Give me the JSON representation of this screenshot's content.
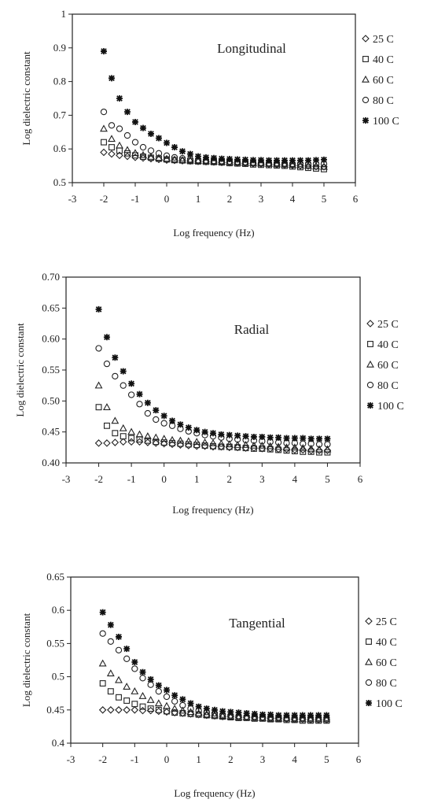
{
  "chart_data": [
    {
      "type": "scatter",
      "title": "Longitudinal",
      "xlabel": "Log frequency (Hz)",
      "ylabel": "Log dielectric constant",
      "xlim": [
        -3,
        6
      ],
      "ylim": [
        0.5,
        1.0
      ],
      "xticks": [
        "-3",
        "-2",
        "-1",
        "0",
        "1",
        "2",
        "3",
        "4",
        "5",
        "6"
      ],
      "yticks": [
        "0.5",
        "0.6",
        "0.7",
        "0.8",
        "0.9",
        "1"
      ],
      "legend_position": "right",
      "x": [
        -2.0,
        -1.75,
        -1.5,
        -1.25,
        -1.0,
        -0.75,
        -0.5,
        -0.25,
        0.0,
        0.25,
        0.5,
        0.75,
        1.0,
        1.25,
        1.5,
        1.75,
        2.0,
        2.25,
        2.5,
        2.75,
        3.0,
        3.25,
        3.5,
        3.75,
        4.0,
        4.25,
        4.5,
        4.75,
        5.0
      ],
      "series": [
        {
          "name": "25 C",
          "marker": "diamond",
          "values": [
            0.59,
            0.585,
            0.581,
            0.578,
            0.575,
            0.573,
            0.571,
            0.569,
            0.567,
            0.566,
            0.565,
            0.564,
            0.563,
            0.562,
            0.561,
            0.56,
            0.559,
            0.558,
            0.557,
            0.556,
            0.555,
            0.554,
            0.553,
            0.552,
            0.551,
            0.55,
            0.549,
            0.548,
            0.547
          ]
        },
        {
          "name": "40 C",
          "marker": "square",
          "values": [
            0.62,
            0.605,
            0.595,
            0.587,
            0.581,
            0.577,
            0.574,
            0.571,
            0.569,
            0.567,
            0.566,
            0.564,
            0.563,
            0.562,
            0.561,
            0.56,
            0.558,
            0.557,
            0.556,
            0.554,
            0.553,
            0.552,
            0.551,
            0.55,
            0.548,
            0.546,
            0.544,
            0.542,
            0.54
          ]
        },
        {
          "name": "60 C",
          "marker": "triangle",
          "values": [
            0.66,
            0.63,
            0.61,
            0.597,
            0.588,
            0.582,
            0.577,
            0.574,
            0.571,
            0.569,
            0.567,
            0.566,
            0.565,
            0.564,
            0.563,
            0.562,
            0.561,
            0.56,
            0.559,
            0.558,
            0.557,
            0.556,
            0.555,
            0.554,
            0.553,
            0.551,
            0.55,
            0.548,
            0.547
          ]
        },
        {
          "name": "80 C",
          "marker": "circle",
          "values": [
            0.71,
            0.67,
            0.66,
            0.64,
            0.62,
            0.605,
            0.595,
            0.587,
            0.58,
            0.575,
            0.572,
            0.569,
            0.567,
            0.566,
            0.565,
            0.564,
            0.563,
            0.562,
            0.561,
            0.56,
            0.559,
            0.558,
            0.558,
            0.557,
            0.556,
            0.556,
            0.555,
            0.555,
            0.555
          ]
        },
        {
          "name": "100 C",
          "marker": "star",
          "values": [
            0.89,
            0.81,
            0.75,
            0.71,
            0.68,
            0.662,
            0.645,
            0.632,
            0.618,
            0.605,
            0.593,
            0.585,
            0.578,
            0.575,
            0.573,
            0.571,
            0.57,
            0.569,
            0.568,
            0.567,
            0.567,
            0.566,
            0.566,
            0.566,
            0.566,
            0.566,
            0.566,
            0.567,
            0.568
          ]
        }
      ]
    },
    {
      "type": "scatter",
      "title": "Radial",
      "xlabel": "Log frequency (Hz)",
      "ylabel": "Log dielectric constant",
      "xlim": [
        -3,
        6
      ],
      "ylim": [
        0.4,
        0.7
      ],
      "xticks": [
        "-3",
        "-2",
        "-1",
        "0",
        "1",
        "2",
        "3",
        "4",
        "5",
        "6"
      ],
      "yticks": [
        "0.40",
        "0.45",
        "0.50",
        "0.55",
        "0.60",
        "0.65",
        "0.70"
      ],
      "legend_position": "right",
      "x": [
        -2.0,
        -1.75,
        -1.5,
        -1.25,
        -1.0,
        -0.75,
        -0.5,
        -0.25,
        0.0,
        0.25,
        0.5,
        0.75,
        1.0,
        1.25,
        1.5,
        1.75,
        2.0,
        2.25,
        2.5,
        2.75,
        3.0,
        3.25,
        3.5,
        3.75,
        4.0,
        4.25,
        4.5,
        4.75,
        5.0
      ],
      "series": [
        {
          "name": "25 C",
          "marker": "diamond",
          "values": [
            0.432,
            0.432,
            0.433,
            0.434,
            0.434,
            0.434,
            0.433,
            0.432,
            0.431,
            0.43,
            0.429,
            0.428,
            0.427,
            0.427,
            0.426,
            0.426,
            0.425,
            0.425,
            0.424,
            0.424,
            0.423,
            0.423,
            0.422,
            0.422,
            0.421,
            0.421,
            0.42,
            0.42,
            0.42
          ]
        },
        {
          "name": "40 C",
          "marker": "square",
          "values": [
            0.49,
            0.46,
            0.448,
            0.443,
            0.44,
            0.438,
            0.436,
            0.434,
            0.433,
            0.432,
            0.431,
            0.43,
            0.429,
            0.428,
            0.427,
            0.426,
            0.426,
            0.425,
            0.424,
            0.423,
            0.423,
            0.422,
            0.421,
            0.42,
            0.419,
            0.418,
            0.418,
            0.417,
            0.417
          ]
        },
        {
          "name": "60 C",
          "marker": "triangle",
          "values": [
            0.525,
            0.49,
            0.468,
            0.456,
            0.45,
            0.446,
            0.443,
            0.441,
            0.439,
            0.437,
            0.436,
            0.435,
            0.434,
            0.433,
            0.432,
            0.431,
            0.43,
            0.429,
            0.429,
            0.428,
            0.428,
            0.427,
            0.426,
            0.425,
            0.425,
            0.424,
            0.423,
            0.422,
            0.422
          ]
        },
        {
          "name": "80 C",
          "marker": "circle",
          "values": [
            0.585,
            0.56,
            0.54,
            0.525,
            0.51,
            0.495,
            0.48,
            0.47,
            0.464,
            0.46,
            0.455,
            0.451,
            0.448,
            0.445,
            0.443,
            0.441,
            0.439,
            0.438,
            0.437,
            0.436,
            0.435,
            0.434,
            0.433,
            0.432,
            0.432,
            0.431,
            0.431,
            0.43,
            0.43
          ]
        },
        {
          "name": "100 C",
          "marker": "star",
          "values": [
            0.648,
            0.603,
            0.57,
            0.548,
            0.528,
            0.511,
            0.497,
            0.485,
            0.476,
            0.468,
            0.462,
            0.457,
            0.453,
            0.45,
            0.448,
            0.446,
            0.445,
            0.444,
            0.443,
            0.442,
            0.442,
            0.441,
            0.441,
            0.44,
            0.44,
            0.44,
            0.439,
            0.439,
            0.439
          ]
        }
      ]
    },
    {
      "type": "scatter",
      "title": "Tangential",
      "xlabel": "Log frequency (Hz)",
      "ylabel": "Log dielectric constant",
      "xlim": [
        -3,
        6
      ],
      "ylim": [
        0.4,
        0.65
      ],
      "xticks": [
        "-3",
        "-2",
        "-1",
        "0",
        "1",
        "2",
        "3",
        "4",
        "5",
        "6"
      ],
      "yticks": [
        "0.4",
        "0.45",
        "0.5",
        "0.55",
        "0.6",
        "0.65"
      ],
      "legend_position": "right",
      "x": [
        -2.0,
        -1.75,
        -1.5,
        -1.25,
        -1.0,
        -0.75,
        -0.5,
        -0.25,
        0.0,
        0.25,
        0.5,
        0.75,
        1.0,
        1.25,
        1.5,
        1.75,
        2.0,
        2.25,
        2.5,
        2.75,
        3.0,
        3.25,
        3.5,
        3.75,
        4.0,
        4.25,
        4.5,
        4.75,
        5.0
      ],
      "series": [
        {
          "name": "25 C",
          "marker": "diamond",
          "values": [
            0.45,
            0.45,
            0.45,
            0.45,
            0.45,
            0.449,
            0.449,
            0.448,
            0.447,
            0.446,
            0.445,
            0.444,
            0.443,
            0.442,
            0.441,
            0.44,
            0.44,
            0.439,
            0.439,
            0.438,
            0.438,
            0.437,
            0.437,
            0.436,
            0.436,
            0.436,
            0.435,
            0.435,
            0.435
          ]
        },
        {
          "name": "40 C",
          "marker": "square",
          "values": [
            0.49,
            0.478,
            0.469,
            0.464,
            0.459,
            0.455,
            0.452,
            0.45,
            0.448,
            0.446,
            0.445,
            0.444,
            0.443,
            0.442,
            0.441,
            0.44,
            0.439,
            0.438,
            0.438,
            0.437,
            0.437,
            0.436,
            0.436,
            0.435,
            0.435,
            0.434,
            0.434,
            0.434,
            0.434
          ]
        },
        {
          "name": "60 C",
          "marker": "triangle",
          "values": [
            0.52,
            0.505,
            0.495,
            0.485,
            0.478,
            0.471,
            0.465,
            0.46,
            0.456,
            0.452,
            0.449,
            0.447,
            0.445,
            0.443,
            0.442,
            0.441,
            0.44,
            0.439,
            0.439,
            0.438,
            0.438,
            0.437,
            0.437,
            0.437,
            0.436,
            0.436,
            0.436,
            0.436,
            0.436
          ]
        },
        {
          "name": "80 C",
          "marker": "circle",
          "values": [
            0.565,
            0.553,
            0.54,
            0.527,
            0.512,
            0.498,
            0.488,
            0.478,
            0.47,
            0.463,
            0.457,
            0.452,
            0.449,
            0.447,
            0.445,
            0.443,
            0.442,
            0.441,
            0.44,
            0.44,
            0.439,
            0.439,
            0.439,
            0.438,
            0.438,
            0.438,
            0.438,
            0.438,
            0.438
          ]
        },
        {
          "name": "100 C",
          "marker": "star",
          "values": [
            0.597,
            0.578,
            0.56,
            0.542,
            0.522,
            0.507,
            0.496,
            0.487,
            0.48,
            0.472,
            0.466,
            0.46,
            0.455,
            0.452,
            0.45,
            0.448,
            0.447,
            0.446,
            0.445,
            0.444,
            0.443,
            0.443,
            0.442,
            0.442,
            0.442,
            0.442,
            0.442,
            0.442,
            0.442
          ]
        }
      ]
    }
  ]
}
